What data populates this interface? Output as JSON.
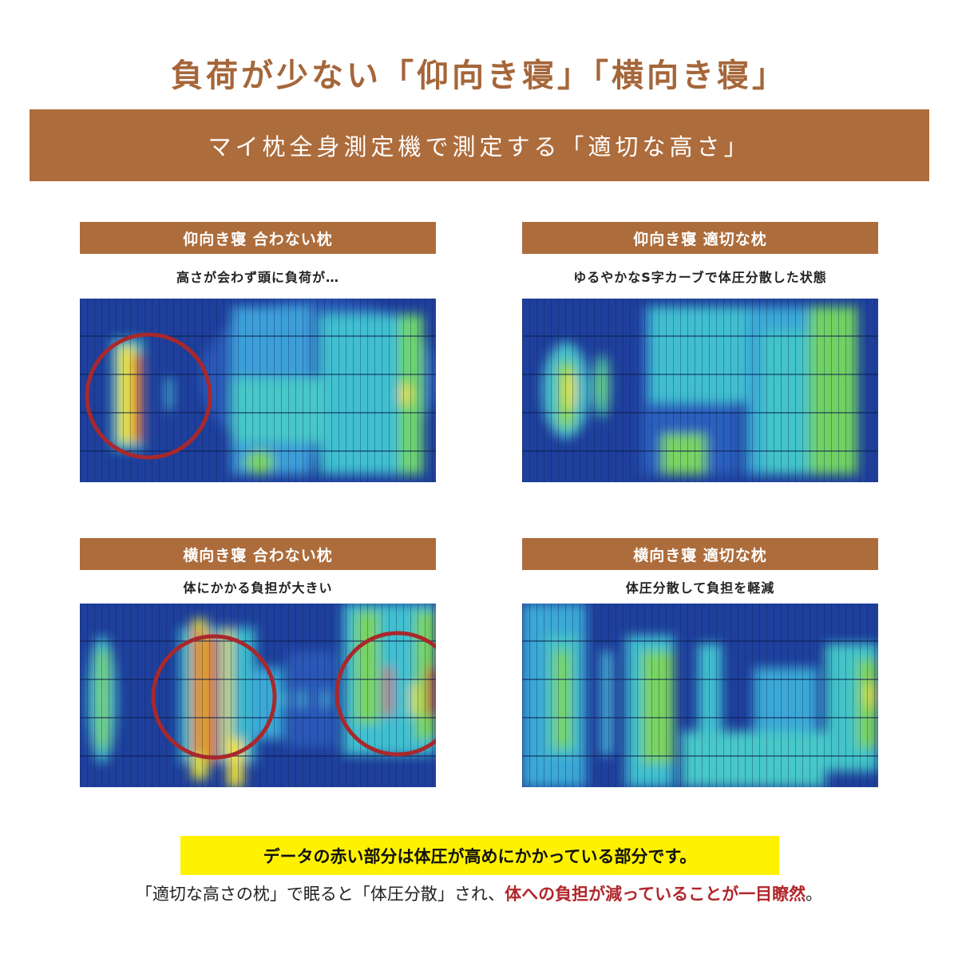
{
  "header": {
    "title": "負荷が少ない「仰向き寝」「横向き寝」",
    "banner": "マイ枕全身測定機で測定する「適切な高さ」"
  },
  "panels": [
    {
      "title": "仰向き寝 合わない枕",
      "caption": "高さが会わず頭に負荷が…"
    },
    {
      "title": "仰向き寝 適切な枕",
      "caption": "ゆるやかなS字カーブで体圧分散した状態"
    },
    {
      "title": "横向き寝 合わない枕",
      "caption": "体にかかる負担が大きい"
    },
    {
      "title": "横向き寝 適切な枕",
      "caption": "体圧分散して負担を軽減"
    }
  ],
  "footer": {
    "note": "データの赤い部分は体圧が高めにかかっている部分です。",
    "text_plain": "「適切な高さの枕」で眠ると「体圧分散」され、",
    "text_emphasis": "体への負担が減っていることが一目瞭然",
    "text_end": "。"
  },
  "colors": {
    "accent": "#ad6c3b",
    "highlight": "#fff200",
    "emphasis": "#b1272b",
    "circle": "#a8282c"
  }
}
